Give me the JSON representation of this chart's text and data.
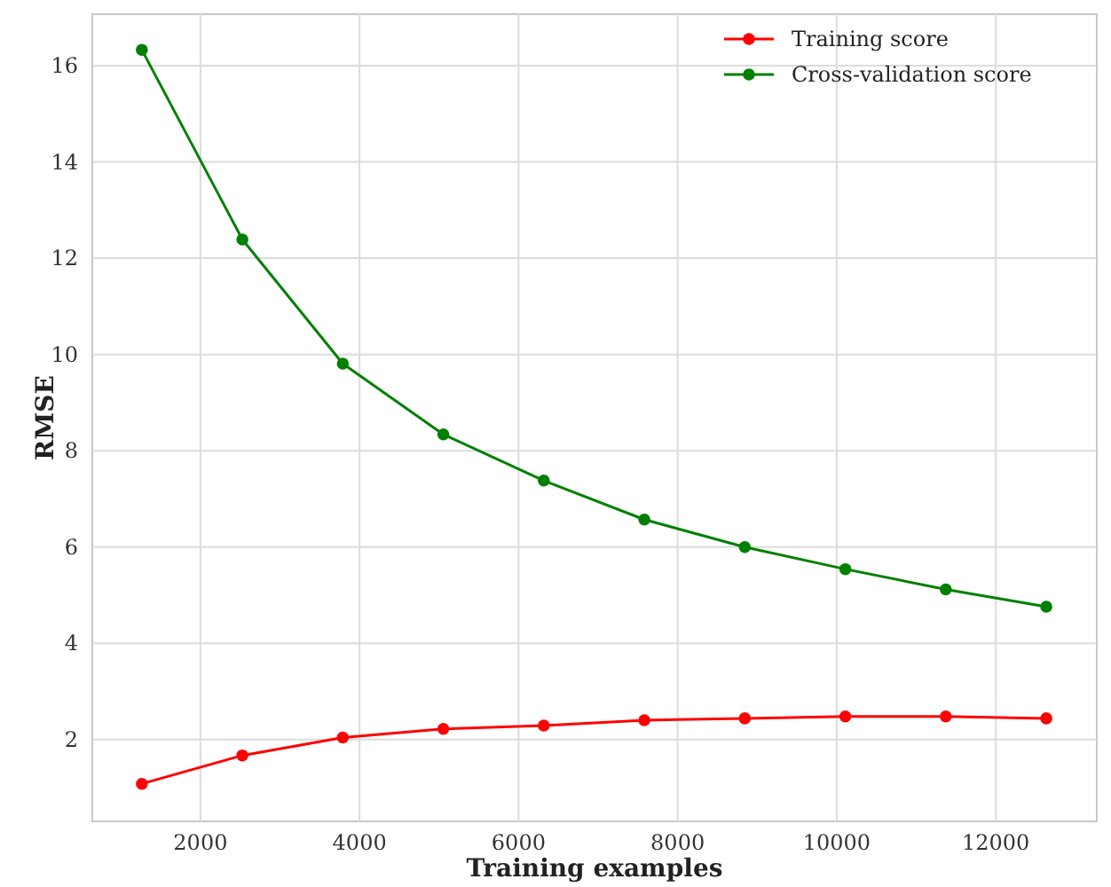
{
  "chart_data": {
    "type": "line",
    "xlabel": "Training examples",
    "ylabel": "RMSE",
    "x": [
      1263,
      2527,
      3790,
      5054,
      6317,
      7581,
      8844,
      10108,
      11371,
      12635
    ],
    "series": [
      {
        "name": "Training score",
        "color": "#ff0000",
        "values": [
          1.08,
          1.67,
          2.04,
          2.22,
          2.29,
          2.4,
          2.44,
          2.48,
          2.48,
          2.44
        ]
      },
      {
        "name": "Cross-validation score",
        "color": "#008000",
        "values": [
          16.33,
          12.39,
          9.81,
          8.34,
          7.38,
          6.57,
          6.0,
          5.54,
          5.12,
          4.76
        ]
      }
    ],
    "xlim": [
      640,
      13270
    ],
    "xticks": [
      2000,
      4000,
      6000,
      8000,
      10000,
      12000
    ],
    "ylim": [
      0.3,
      17.07
    ],
    "yticks": [
      2,
      4,
      6,
      8,
      10,
      12,
      14,
      16
    ],
    "grid": true,
    "legend": "top right",
    "marker": "circle",
    "line_style": "solid"
  }
}
